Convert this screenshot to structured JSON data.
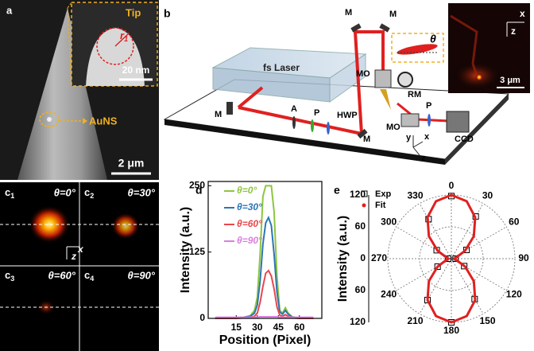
{
  "panel_a": {
    "letter": "a",
    "inset_label": "Tip",
    "radius_symbol": "r",
    "radius_subscript": "1",
    "inset_scale": "20 nm",
    "particle_label": "AuNS",
    "scale": "2 μm"
  },
  "panel_b": {
    "letter": "b",
    "laser": "fs Laser",
    "mirrors": [
      "M",
      "M",
      "M",
      "M"
    ],
    "attenuator": "A",
    "polarizers": [
      "P",
      "P"
    ],
    "waveplate": "HWP",
    "objectives": [
      "MO",
      "MO"
    ],
    "rotation_mount": "RM",
    "camera": "CCD",
    "axes": [
      "y",
      "x",
      "z"
    ],
    "angle": "θ",
    "inset_axes": [
      "z",
      "x"
    ],
    "inset_scale": "3 μm"
  },
  "panel_c": {
    "letter": "c",
    "frames": [
      {
        "index": "1",
        "label": "θ=0°"
      },
      {
        "index": "2",
        "label": "θ=30°"
      },
      {
        "index": "3",
        "label": "θ=60°"
      },
      {
        "index": "4",
        "label": "θ=90°"
      }
    ],
    "axes": [
      "z",
      "x"
    ]
  },
  "chart_data": [
    {
      "type": "line",
      "panel_label": "d",
      "x_label": "Position (Pixel)",
      "y_label": "Intensity (a.u.)",
      "x": [
        0,
        5,
        10,
        15,
        20,
        25,
        28,
        30,
        32,
        34,
        36,
        38,
        40,
        42,
        44,
        46,
        48,
        50,
        52,
        55,
        60,
        65,
        70
      ],
      "series": [
        {
          "name": "θ=0°",
          "color": "#8dc63f",
          "values": [
            0,
            0,
            0,
            1,
            2,
            5,
            15,
            40,
            120,
            230,
            250,
            250,
            250,
            200,
            80,
            15,
            10,
            20,
            10,
            3,
            1,
            0,
            0
          ]
        },
        {
          "name": "θ=30°",
          "color": "#2e75b6",
          "values": [
            0,
            0,
            0,
            1,
            2,
            4,
            10,
            25,
            70,
            140,
            180,
            190,
            175,
            120,
            50,
            12,
            8,
            15,
            8,
            2,
            1,
            0,
            0
          ]
        },
        {
          "name": "θ=60°",
          "color": "#e8474c",
          "values": [
            0,
            0,
            0,
            0,
            1,
            2,
            4,
            10,
            30,
            60,
            85,
            90,
            80,
            55,
            22,
            6,
            4,
            7,
            4,
            1,
            0,
            0,
            0
          ]
        },
        {
          "name": "θ=90°",
          "color": "#d97fe0",
          "values": [
            2,
            2,
            2,
            2,
            2,
            2,
            2,
            2,
            3,
            3,
            3,
            3,
            3,
            3,
            3,
            2,
            2,
            2,
            2,
            2,
            2,
            2,
            2
          ]
        }
      ],
      "xlim": [
        -5,
        76
      ],
      "ylim": [
        0,
        258
      ],
      "xticks": [
        15,
        30,
        45,
        60
      ],
      "yticks": [
        0,
        125,
        250
      ]
    },
    {
      "type": "polar",
      "panel_label": "e",
      "r_label": "Intensity (a.u.)",
      "series": [
        {
          "name": "Exp",
          "color": "#000000",
          "marker": "square",
          "theta": [
            0,
            30,
            60,
            90,
            120,
            150,
            180,
            210,
            240,
            270,
            300,
            330
          ],
          "values": [
            118,
            92,
            33,
            8,
            28,
            88,
            120,
            90,
            30,
            6,
            32,
            86
          ]
        },
        {
          "name": "Fit",
          "color": "#e02020",
          "marker": "line",
          "theta": [
            0,
            15,
            30,
            45,
            60,
            75,
            90,
            105,
            120,
            135,
            150,
            165,
            180,
            195,
            210,
            225,
            240,
            255,
            270,
            285,
            300,
            315,
            330,
            345
          ],
          "values": [
            120,
            112,
            90,
            60,
            30,
            10,
            5,
            10,
            30,
            60,
            90,
            112,
            120,
            112,
            90,
            60,
            30,
            10,
            5,
            10,
            30,
            60,
            90,
            112
          ]
        }
      ],
      "rlim": [
        0,
        120
      ],
      "rticks": [
        0,
        60,
        120
      ],
      "thetaticks": [
        0,
        30,
        60,
        90,
        120,
        150,
        180,
        210,
        240,
        270,
        300,
        330
      ]
    }
  ]
}
